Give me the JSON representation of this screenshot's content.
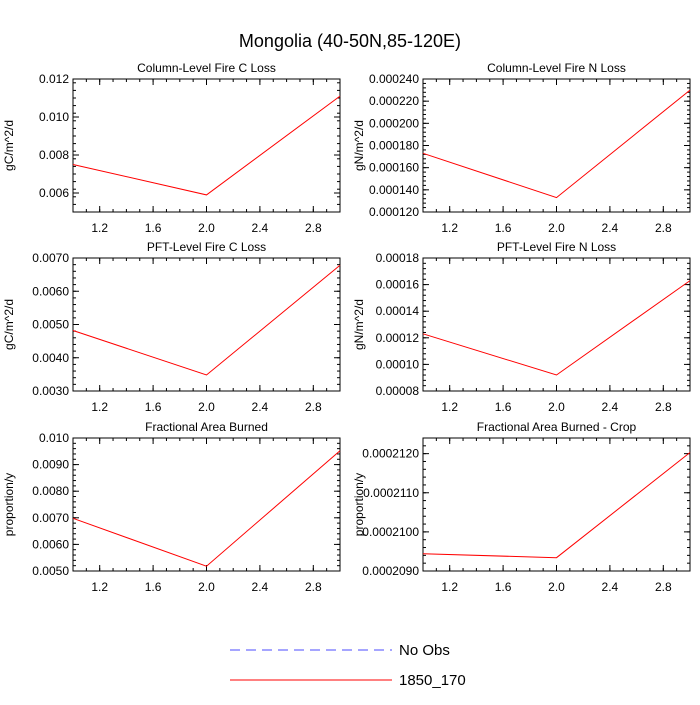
{
  "figure": {
    "title": "Mongolia (40-50N,85-120E)"
  },
  "legend": {
    "entries": [
      {
        "label": "No Obs",
        "color": "#4b4bff",
        "dash": "dashed"
      },
      {
        "label": "1850_170",
        "color": "#ff0000",
        "dash": "solid"
      }
    ]
  },
  "chart_data": [
    {
      "type": "line",
      "title": "Column-Level Fire C Loss",
      "ylabel": "gC/m^2/d",
      "xlim": [
        1.0,
        3.0
      ],
      "ylim": [
        0.005,
        0.012
      ],
      "xticks": [
        1.2,
        1.6,
        2.0,
        2.4,
        2.8
      ],
      "xticklabels": [
        "1.2",
        "1.6",
        "2.0",
        "2.4",
        "2.8"
      ],
      "yticks": [
        0.006,
        0.008,
        0.01,
        0.012
      ],
      "yticklabels": [
        "0.006",
        "0.008",
        "0.010",
        "0.012"
      ],
      "series": [
        {
          "name": "1850_170",
          "color": "#ff0000",
          "x": [
            1,
            2,
            3
          ],
          "y": [
            0.0075,
            0.0059,
            0.0111
          ]
        }
      ]
    },
    {
      "type": "line",
      "title": "Column-Level Fire N Loss",
      "ylabel": "gN/m^2/d",
      "xlim": [
        1.0,
        3.0
      ],
      "ylim": [
        0.00012,
        0.00024
      ],
      "xticks": [
        1.2,
        1.6,
        2.0,
        2.4,
        2.8
      ],
      "xticklabels": [
        "1.2",
        "1.6",
        "2.0",
        "2.4",
        "2.8"
      ],
      "yticks": [
        0.00012,
        0.00014,
        0.00016,
        0.00018,
        0.0002,
        0.00022,
        0.00024
      ],
      "yticklabels": [
        "0.000120",
        "0.000140",
        "0.000160",
        "0.000180",
        "0.000200",
        "0.000220",
        "0.000240"
      ],
      "series": [
        {
          "name": "1850_170",
          "color": "#ff0000",
          "x": [
            1,
            2,
            3
          ],
          "y": [
            0.000173,
            0.000133,
            0.00023
          ]
        }
      ]
    },
    {
      "type": "line",
      "title": "PFT-Level Fire C Loss",
      "ylabel": "gC/m^2/d",
      "xlim": [
        1.0,
        3.0
      ],
      "ylim": [
        0.003,
        0.007
      ],
      "xticks": [
        1.2,
        1.6,
        2.0,
        2.4,
        2.8
      ],
      "xticklabels": [
        "1.2",
        "1.6",
        "2.0",
        "2.4",
        "2.8"
      ],
      "yticks": [
        0.003,
        0.004,
        0.005,
        0.006,
        0.007
      ],
      "yticklabels": [
        "0.0030",
        "0.0040",
        "0.0050",
        "0.0060",
        "0.0070"
      ],
      "series": [
        {
          "name": "1850_170",
          "color": "#ff0000",
          "x": [
            1,
            2,
            3
          ],
          "y": [
            0.00482,
            0.00348,
            0.00678
          ]
        }
      ]
    },
    {
      "type": "line",
      "title": "PFT-Level Fire N Loss",
      "ylabel": "gN/m^2/d",
      "xlim": [
        1.0,
        3.0
      ],
      "ylim": [
        8e-05,
        0.00018
      ],
      "xticks": [
        1.2,
        1.6,
        2.0,
        2.4,
        2.8
      ],
      "xticklabels": [
        "1.2",
        "1.6",
        "2.0",
        "2.4",
        "2.8"
      ],
      "yticks": [
        8e-05,
        0.0001,
        0.00012,
        0.00014,
        0.00016,
        0.00018
      ],
      "yticklabels": [
        "0.00008",
        "0.00010",
        "0.00012",
        "0.00014",
        "0.00016",
        "0.00018"
      ],
      "series": [
        {
          "name": "1850_170",
          "color": "#ff0000",
          "x": [
            1,
            2,
            3
          ],
          "y": [
            0.000123,
            9.2e-05,
            0.000163
          ]
        }
      ]
    },
    {
      "type": "line",
      "title": "Fractional Area Burned",
      "ylabel": "proportion/y",
      "xlim": [
        1.0,
        3.0
      ],
      "ylim": [
        0.005,
        0.01
      ],
      "xticks": [
        1.2,
        1.6,
        2.0,
        2.4,
        2.8
      ],
      "xticklabels": [
        "1.2",
        "1.6",
        "2.0",
        "2.4",
        "2.8"
      ],
      "yticks": [
        0.005,
        0.006,
        0.007,
        0.008,
        0.009,
        0.01
      ],
      "yticklabels": [
        "0.0050",
        "0.0060",
        "0.0070",
        "0.0080",
        "0.0090",
        "0.010"
      ],
      "series": [
        {
          "name": "1850_170",
          "color": "#ff0000",
          "x": [
            1,
            2,
            3
          ],
          "y": [
            0.00698,
            0.00518,
            0.00952
          ]
        }
      ]
    },
    {
      "type": "line",
      "title": "Fractional Area Burned - Crop",
      "ylabel": "proportion/y",
      "xlim": [
        1.0,
        3.0
      ],
      "ylim": [
        0.000209,
        0.0002124
      ],
      "xticks": [
        1.2,
        1.6,
        2.0,
        2.4,
        2.8
      ],
      "xticklabels": [
        "1.2",
        "1.6",
        "2.0",
        "2.4",
        "2.8"
      ],
      "yticks": [
        0.000209,
        0.00021,
        0.000211,
        0.000212
      ],
      "yticklabels": [
        "0.0002090",
        "0.0002100",
        "0.0002110",
        "0.0002120"
      ],
      "series": [
        {
          "name": "1850_170",
          "color": "#ff0000",
          "x": [
            1,
            2,
            3
          ],
          "y": [
            0.00020944,
            0.00020934,
            0.00021203
          ]
        }
      ]
    }
  ]
}
